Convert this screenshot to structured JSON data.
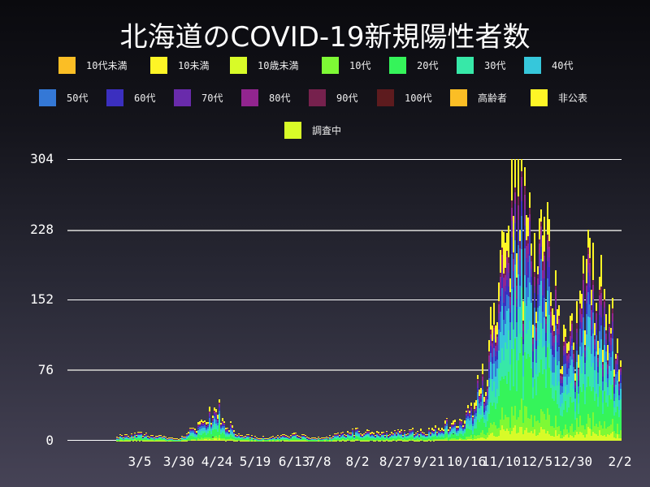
{
  "title": "北海道のCOVID-19新規陽性者数",
  "legend": [
    {
      "label": "10代未満",
      "color": "#fbbe25"
    },
    {
      "label": "10未満",
      "color": "#fef526"
    },
    {
      "label": "10歳未満",
      "color": "#d8fb28"
    },
    {
      "label": "10代",
      "color": "#7ef935"
    },
    {
      "label": "20代",
      "color": "#35f45a"
    },
    {
      "label": "30代",
      "color": "#37e8a8"
    },
    {
      "label": "40代",
      "color": "#36c7db"
    },
    {
      "label": "50代",
      "color": "#3478d6"
    },
    {
      "label": "60代",
      "color": "#3b2fbf"
    },
    {
      "label": "70代",
      "color": "#692bab"
    },
    {
      "label": "80代",
      "color": "#92258f"
    },
    {
      "label": "90代",
      "color": "#76214d"
    },
    {
      "label": "100代",
      "color": "#5d1b1e"
    },
    {
      "label": "高齢者",
      "color": "#fbbe25"
    },
    {
      "label": "非公表",
      "color": "#fef526"
    },
    {
      "label": "調査中",
      "color": "#d8fb28"
    }
  ],
  "chart_data": {
    "type": "bar",
    "stacked": true,
    "title": "北海道のCOVID-19新規陽性者数",
    "xlabel": "",
    "ylabel": "",
    "ylim": [
      0,
      304
    ],
    "yticks": [
      0,
      76,
      152,
      228,
      304
    ],
    "xtick_labels": [
      "3/5",
      "3/30",
      "4/24",
      "5/19",
      "6/13",
      "7/8",
      "8/2",
      "8/27",
      "9/21",
      "10/16",
      "11/10",
      "12/5",
      "12/30",
      "2/2"
    ],
    "grid": true,
    "legend_position": "top",
    "series_names": [
      "10代未満",
      "10未満",
      "10歳未満",
      "10代",
      "20代",
      "30代",
      "40代",
      "50代",
      "60代",
      "70代",
      "80代",
      "90代",
      "100代",
      "高齢者",
      "非公表",
      "調査中"
    ],
    "x_range": [
      "2020-01-28",
      "2021-02-02"
    ],
    "totals_approx": [
      {
        "period": "3/5",
        "value": 8
      },
      {
        "period": "3/30",
        "value": 3
      },
      {
        "period": "4/14",
        "value": 20
      },
      {
        "period": "4/24",
        "value": 40
      },
      {
        "period": "5/10",
        "value": 10
      },
      {
        "period": "5/19",
        "value": 4
      },
      {
        "period": "6/13",
        "value": 8
      },
      {
        "period": "7/8",
        "value": 3
      },
      {
        "period": "8/2",
        "value": 12
      },
      {
        "period": "8/27",
        "value": 10
      },
      {
        "period": "9/21",
        "value": 12
      },
      {
        "period": "10/16",
        "value": 30
      },
      {
        "period": "10/30",
        "value": 90
      },
      {
        "period": "11/10",
        "value": 200
      },
      {
        "period": "11/21",
        "value": 302
      },
      {
        "period": "11/28",
        "value": 250
      },
      {
        "period": "12/5",
        "value": 200
      },
      {
        "period": "12/12",
        "value": 235
      },
      {
        "period": "12/20",
        "value": 110
      },
      {
        "period": "12/30",
        "value": 120
      },
      {
        "period": "1/8",
        "value": 210
      },
      {
        "period": "1/12",
        "value": 195
      },
      {
        "period": "1/20",
        "value": 150
      },
      {
        "period": "2/2",
        "value": 100
      }
    ]
  },
  "axes": {
    "y_labels": [
      "304",
      "228",
      "152",
      "76",
      "0"
    ],
    "x_labels": [
      "3/5",
      "3/30",
      "4/24",
      "5/19",
      "6/13",
      "7/8",
      "8/2",
      "8/27",
      "9/21",
      "10/16",
      "11/10",
      "12/5",
      "12/30",
      "2/2"
    ]
  }
}
